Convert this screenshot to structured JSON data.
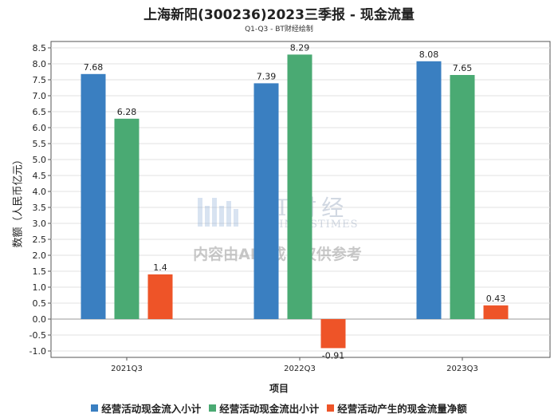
{
  "title": "上海新阳(300236)2023三季报 - 现金流量",
  "subtitle": "Q1-Q3 - BT财经绘制",
  "watermark": {
    "logo_text": "BT财经",
    "logo_sub": "BUSINESSTIMES",
    "notice": "内容由AI生成，仅供参考"
  },
  "chart_data": {
    "type": "bar",
    "title": "上海新阳(300236)2023三季报 - 现金流量",
    "xlabel": "项目",
    "ylabel": "数额（人民币亿元）",
    "categories": [
      "2021Q3",
      "2022Q3",
      "2023Q3"
    ],
    "ylim": [
      -1.2,
      8.7
    ],
    "yticks": [
      -1.0,
      -0.5,
      0.0,
      0.5,
      1.0,
      1.5,
      2.0,
      2.5,
      3.0,
      3.5,
      4.0,
      4.5,
      5.0,
      5.5,
      6.0,
      6.5,
      7.0,
      7.5,
      8.0,
      8.5
    ],
    "grid": true,
    "legend_position": "bottom",
    "series": [
      {
        "name": "经营活动现金流入小计",
        "color": "#3a7fc1",
        "values": [
          7.68,
          7.39,
          8.08
        ],
        "labels": [
          "7.68",
          "7.39",
          "8.08"
        ]
      },
      {
        "name": "经营活动现金流出小计",
        "color": "#4aaa73",
        "values": [
          6.28,
          8.29,
          7.65
        ],
        "labels": [
          "6.28",
          "8.29",
          "7.65"
        ]
      },
      {
        "name": "经营活动产生的现金流量净额",
        "color": "#ee5428",
        "values": [
          1.4,
          -0.91,
          0.43
        ],
        "labels": [
          "1.4",
          "-0.91",
          "0.43"
        ]
      }
    ]
  }
}
